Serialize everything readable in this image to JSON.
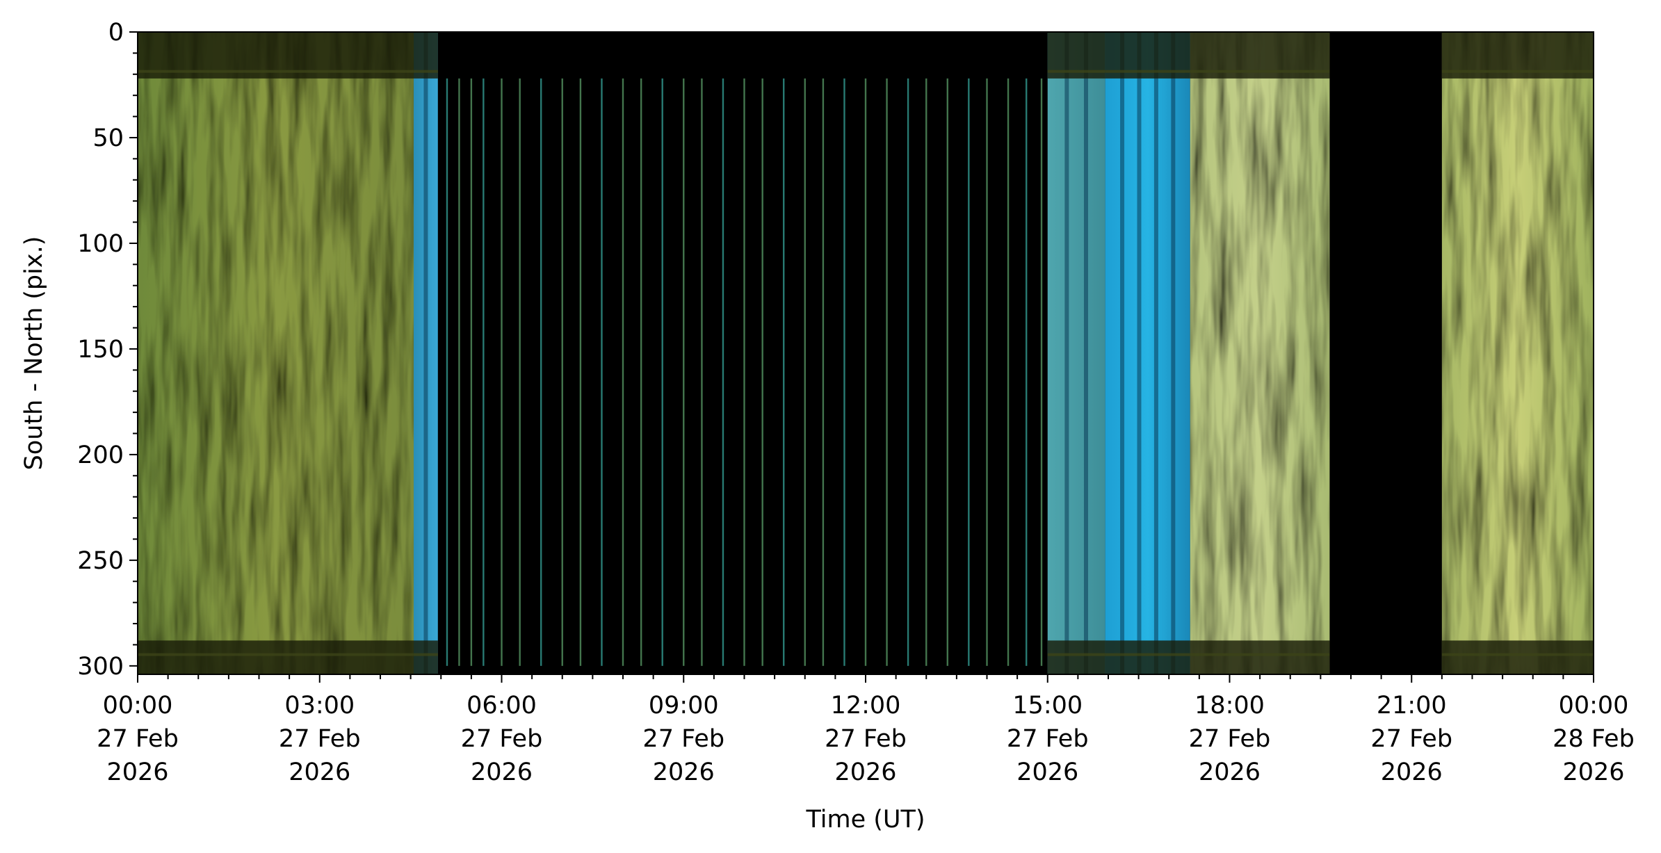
{
  "chart_data": {
    "type": "heatmap",
    "title": "",
    "xlabel": "Time (UT)",
    "ylabel": "South - North (pix.)",
    "x_range_hours": [
      0,
      24
    ],
    "ylim": [
      0,
      304
    ],
    "y_inverted": true,
    "grid": false,
    "x_ticks": [
      {
        "hours": 0,
        "lines": [
          "00:00",
          "27 Feb",
          "2026"
        ]
      },
      {
        "hours": 3,
        "lines": [
          "03:00",
          "27 Feb",
          "2026"
        ]
      },
      {
        "hours": 6,
        "lines": [
          "06:00",
          "27 Feb",
          "2026"
        ]
      },
      {
        "hours": 9,
        "lines": [
          "09:00",
          "27 Feb",
          "2026"
        ]
      },
      {
        "hours": 12,
        "lines": [
          "12:00",
          "27 Feb",
          "2026"
        ]
      },
      {
        "hours": 15,
        "lines": [
          "15:00",
          "27 Feb",
          "2026"
        ]
      },
      {
        "hours": 18,
        "lines": [
          "18:00",
          "27 Feb",
          "2026"
        ]
      },
      {
        "hours": 21,
        "lines": [
          "21:00",
          "27 Feb",
          "2026"
        ]
      },
      {
        "hours": 24,
        "lines": [
          "00:00",
          "28 Feb",
          "2026"
        ]
      }
    ],
    "y_ticks": [
      0,
      50,
      100,
      150,
      200,
      250,
      300
    ],
    "x_minor_step_hours": 0.5,
    "y_minor_step": 10,
    "segments": [
      {
        "start": 0.0,
        "end": 4.55,
        "kind": "auroral",
        "palette": "olive",
        "colors": [
          "#6f8a3a",
          "#8a9a42",
          "#7a8c3c"
        ]
      },
      {
        "start": 4.55,
        "end": 4.95,
        "kind": "twilight",
        "palette": "cyan",
        "colors": [
          "#2a8fb8",
          "#3aa8d6"
        ]
      },
      {
        "start": 4.95,
        "end": 15.0,
        "kind": "daylight",
        "palette": "black",
        "colors": [
          "#000000"
        ]
      },
      {
        "start": 15.0,
        "end": 15.95,
        "kind": "twilight",
        "palette": "teal",
        "colors": [
          "#4fa6ae",
          "#3e8e98"
        ]
      },
      {
        "start": 15.95,
        "end": 17.35,
        "kind": "twilight",
        "palette": "cyan",
        "colors": [
          "#1e9fd4",
          "#26b4e4",
          "#1a88b8"
        ]
      },
      {
        "start": 17.35,
        "end": 19.65,
        "kind": "auroral",
        "palette": "light-green",
        "colors": [
          "#b6c57e",
          "#c4d08a",
          "#a9bb72"
        ]
      },
      {
        "start": 19.65,
        "end": 21.5,
        "kind": "gap",
        "palette": "black",
        "colors": [
          "#000000"
        ]
      },
      {
        "start": 21.5,
        "end": 24.0,
        "kind": "auroral",
        "palette": "yellow-green",
        "colors": [
          "#a7b865",
          "#c7cf78",
          "#9fb25e"
        ]
      }
    ],
    "daylight_spikes_hours": [
      5.1,
      5.3,
      5.5,
      5.7,
      6.0,
      6.3,
      6.65,
      7.0,
      7.3,
      7.65,
      8.0,
      8.3,
      8.65,
      9.0,
      9.3,
      9.65,
      10.0,
      10.3,
      10.65,
      11.0,
      11.3,
      11.65,
      12.0,
      12.35,
      12.7,
      13.0,
      13.35,
      13.7,
      14.0,
      14.35,
      14.65,
      14.9
    ],
    "masked_bands_pixels": [
      [
        0,
        22
      ],
      [
        288,
        304
      ]
    ]
  }
}
